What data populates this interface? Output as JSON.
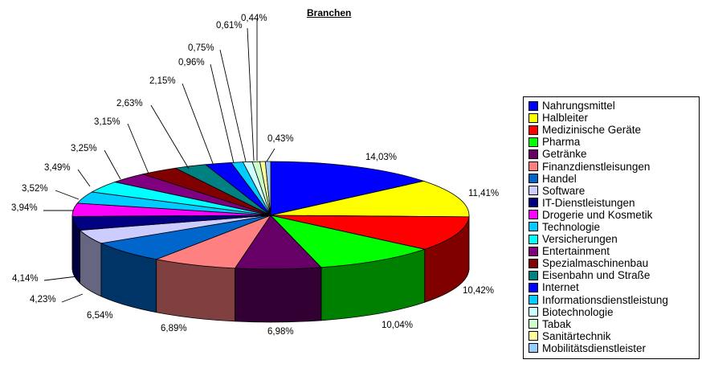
{
  "chart_data": {
    "type": "pie",
    "title": "Branchen",
    "three_d": true,
    "legend_position": "right",
    "slices": [
      {
        "name": "Nahrungsmittel",
        "value": 14.03,
        "label": "14,03%",
        "color": "#0000ff"
      },
      {
        "name": "Halbleiter",
        "value": 11.41,
        "label": "11,41%",
        "color": "#ffff00"
      },
      {
        "name": "Medizinische Geräte",
        "value": 10.42,
        "label": "10,42%",
        "color": "#ff0000"
      },
      {
        "name": "Pharma",
        "value": 10.04,
        "label": "10,04%",
        "color": "#00ff00"
      },
      {
        "name": "Getränke",
        "value": 6.98,
        "label": "6,98%",
        "color": "#660066"
      },
      {
        "name": "Finanzdienstleisungen",
        "value": 6.89,
        "label": "6,89%",
        "color": "#ff8080"
      },
      {
        "name": "Handel",
        "value": 6.54,
        "label": "6,54%",
        "color": "#0066cc"
      },
      {
        "name": "Software",
        "value": 4.23,
        "label": "4,23%",
        "color": "#ccccff"
      },
      {
        "name": "IT-Dienstleistungen",
        "value": 4.14,
        "label": "4,14%",
        "color": "#000080"
      },
      {
        "name": "Drogerie und Kosmetik",
        "value": 3.94,
        "label": "3,94%",
        "color": "#ff00ff"
      },
      {
        "name": "Technologie",
        "value": 3.52,
        "label": "3,52%",
        "color": "#00ccff"
      },
      {
        "name": "Versicherungen",
        "value": 3.49,
        "label": "3,49%",
        "color": "#00ffff"
      },
      {
        "name": "Entertainment",
        "value": 3.25,
        "label": "3,25%",
        "color": "#800080"
      },
      {
        "name": "Spezialmaschinenbau",
        "value": 3.15,
        "label": "3,15%",
        "color": "#800000"
      },
      {
        "name": "Eisenbahn und Straße",
        "value": 2.63,
        "label": "2,63%",
        "color": "#008080"
      },
      {
        "name": "Internet",
        "value": 2.15,
        "label": "2,15%",
        "color": "#0000ff"
      },
      {
        "name": "Informationsdienstleistung",
        "value": 0.96,
        "label": "0,96%",
        "color": "#00ccff"
      },
      {
        "name": "Biotechnologie",
        "value": 0.75,
        "label": "0,75%",
        "color": "#ccffff"
      },
      {
        "name": "Tabak",
        "value": 0.61,
        "label": "0,61%",
        "color": "#ccffcc"
      },
      {
        "name": "Sanitärtechnik",
        "value": 0.44,
        "label": "0,44%",
        "color": "#ffff99"
      },
      {
        "name": "Mobilitätsdienstleister",
        "value": 0.43,
        "label": "0,43%",
        "color": "#99ccff"
      }
    ]
  }
}
